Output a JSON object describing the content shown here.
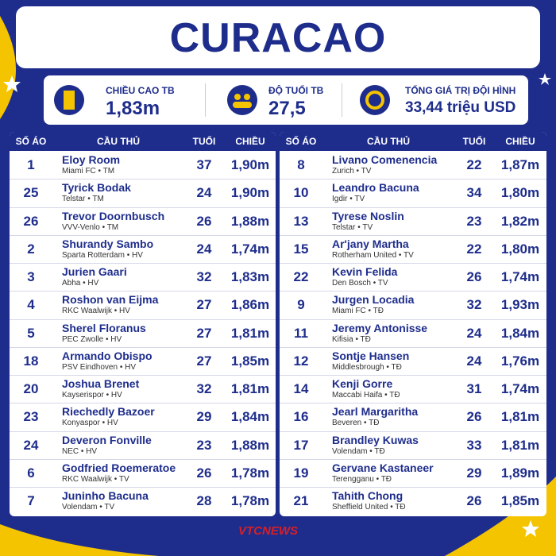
{
  "header": {
    "title": "CURACAO"
  },
  "stats": [
    {
      "label": "CHIỀU CAO TB",
      "value": "1,83m"
    },
    {
      "label": "ĐỘ TUỔI TB",
      "value": "27,5"
    },
    {
      "label": "TỔNG GIÁ TRỊ ĐỘI HÌNH",
      "value": "33,44 triệu USD"
    }
  ],
  "tables": [
    {
      "columns": [
        "SỐ ÁO",
        "CẦU THỦ",
        "TUỔI",
        "CHIỀU CAO"
      ],
      "rows": [
        [
          "1",
          "Eloy Room",
          "Miami FC • TM",
          "37",
          "1,90m"
        ],
        [
          "25",
          "Tyrick Bodak",
          "Telstar • TM",
          "24",
          "1,90m"
        ],
        [
          "26",
          "Trevor Doornbusch",
          "VVV-Venlo • TM",
          "26",
          "1,88m"
        ],
        [
          "2",
          "Shurandy Sambo",
          "Sparta Rotterdam • HV",
          "24",
          "1,74m"
        ],
        [
          "3",
          "Jurien Gaari",
          "Abha • HV",
          "32",
          "1,83m"
        ],
        [
          "4",
          "Roshon van Eijma",
          "RKC Waalwijk • HV",
          "27",
          "1,86m"
        ],
        [
          "5",
          "Sherel Floranus",
          "PEC Zwolle • HV",
          "27",
          "1,81m"
        ],
        [
          "18",
          "Armando Obispo",
          "PSV Eindhoven • HV",
          "27",
          "1,85m"
        ],
        [
          "20",
          "Joshua Brenet",
          "Kayserispor • HV",
          "32",
          "1,81m"
        ],
        [
          "23",
          "Riechedly Bazoer",
          "Konyaspor • HV",
          "29",
          "1,84m"
        ],
        [
          "24",
          "Deveron Fonville",
          "NEC • HV",
          "23",
          "1,88m"
        ],
        [
          "6",
          "Godfried Roemeratoe",
          "RKC Waalwijk • TV",
          "26",
          "1,78m"
        ],
        [
          "7",
          "Juninho Bacuna",
          "Volendam • TV",
          "28",
          "1,78m"
        ]
      ]
    },
    {
      "columns": [
        "SỐ ÁO",
        "CẦU THỦ",
        "TUỔI",
        "CHIỀU CAO"
      ],
      "rows": [
        [
          "8",
          "Livano Comenencia",
          "Zurich • TV",
          "22",
          "1,87m"
        ],
        [
          "10",
          "Leandro Bacuna",
          "Igdir • TV",
          "34",
          "1,80m"
        ],
        [
          "13",
          "Tyrese Noslin",
          "Telstar • TV",
          "23",
          "1,82m"
        ],
        [
          "15",
          "Ar'jany Martha",
          "Rotherham United • TV",
          "22",
          "1,80m"
        ],
        [
          "22",
          "Kevin Felida",
          "Den Bosch • TV",
          "26",
          "1,74m"
        ],
        [
          "9",
          "Jurgen Locadia",
          "Miami FC • TĐ",
          "32",
          "1,93m"
        ],
        [
          "11",
          "Jeremy Antonisse",
          "Kifisia • TĐ",
          "24",
          "1,84m"
        ],
        [
          "12",
          "Sontje Hansen",
          "Middlesbrough • TĐ",
          "24",
          "1,76m"
        ],
        [
          "14",
          "Kenji Gorre",
          "Maccabi Haifa • TĐ",
          "31",
          "1,74m"
        ],
        [
          "16",
          "Jearl Margaritha",
          "Beveren • TĐ",
          "26",
          "1,81m"
        ],
        [
          "17",
          "Brandley Kuwas",
          "Volendam • TĐ",
          "33",
          "1,81m"
        ],
        [
          "19",
          "Gervane Kastaneer",
          "Terengganu • TĐ",
          "29",
          "1,89m"
        ],
        [
          "21",
          "Tahith Chong",
          "Sheffield United • TĐ",
          "26",
          "1,85m"
        ]
      ]
    }
  ],
  "footer": {
    "logo": "VTCNEWS"
  }
}
